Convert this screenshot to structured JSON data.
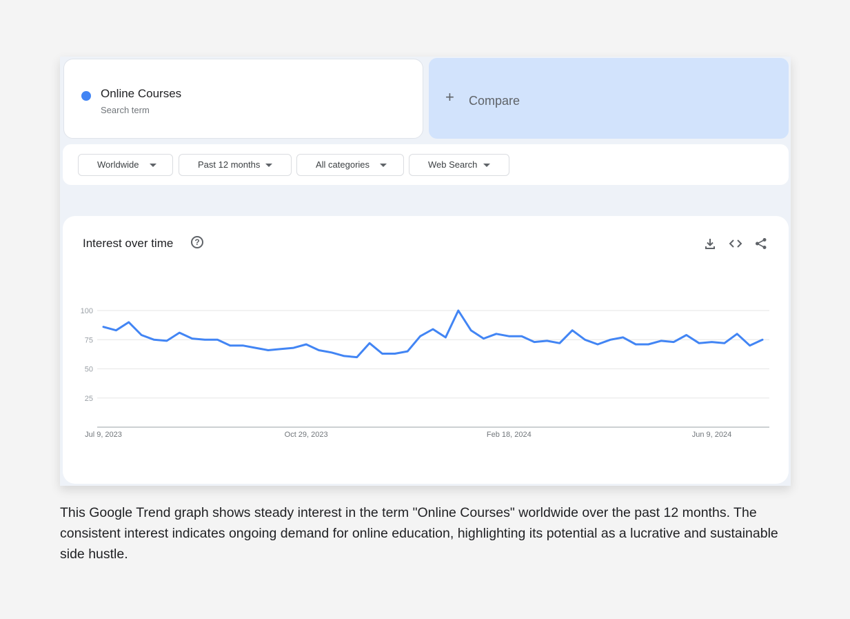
{
  "search_term": {
    "name": "Online Courses",
    "sublabel": "Search term",
    "color": "#4285f4"
  },
  "compare": {
    "icon": "plus-icon",
    "label": "Compare"
  },
  "filters": [
    {
      "label": "Worldwide"
    },
    {
      "label": "Past 12 months"
    },
    {
      "label": "All categories"
    },
    {
      "label": "Web Search"
    }
  ],
  "chart_card": {
    "title": "Interest over time",
    "help_icon": "help-circle-icon",
    "actions": [
      "download-icon",
      "embed-icon",
      "share-icon"
    ]
  },
  "chart_data": {
    "type": "line",
    "title": "Interest over time",
    "xlabel": "",
    "ylabel": "",
    "ylim": [
      0,
      100
    ],
    "yticks": [
      25,
      50,
      75,
      100
    ],
    "grid": true,
    "x_tick_labels": [
      "Jul 9, 2023",
      "Oct 29, 2023",
      "Feb 18, 2024",
      "Jun 9, 2024"
    ],
    "x_tick_index": [
      0,
      16,
      32,
      48
    ],
    "line_color": "#4285f4",
    "series": [
      {
        "name": "Online Courses",
        "values": [
          86,
          83,
          90,
          79,
          75,
          74,
          81,
          76,
          75,
          75,
          70,
          70,
          68,
          66,
          67,
          68,
          71,
          66,
          64,
          61,
          60,
          72,
          63,
          63,
          65,
          78,
          84,
          77,
          100,
          83,
          76,
          80,
          78,
          78,
          73,
          74,
          72,
          83,
          75,
          71,
          75,
          77,
          71,
          71,
          74,
          73,
          79,
          72,
          73,
          72,
          80,
          70,
          75
        ]
      }
    ]
  },
  "caption": "This Google Trend graph shows steady interest in the term \"Online Courses\" worldwide over the past 12 months. The consistent interest indicates ongoing demand for online education, highlighting its potential as a lucrative and sustainable side hustle."
}
